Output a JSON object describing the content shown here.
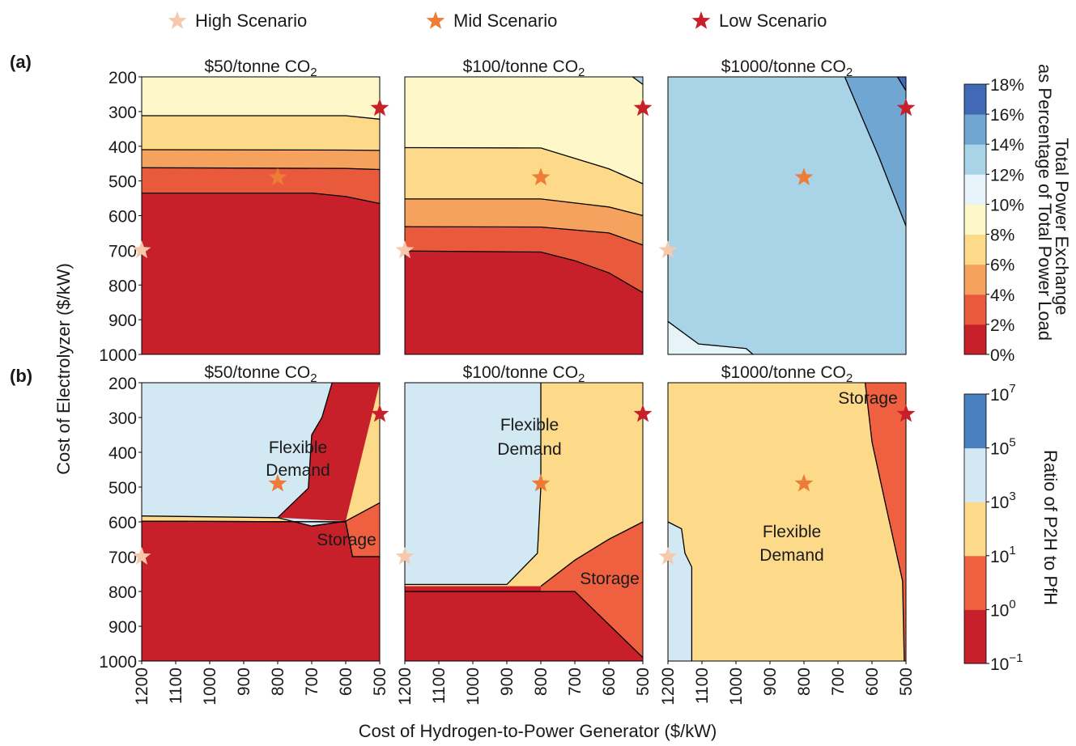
{
  "legend": [
    {
      "label": "High Scenario",
      "color": "#f6c9ad"
    },
    {
      "label": "Mid Scenario",
      "color": "#ee7b36"
    },
    {
      "label": "Low Scenario",
      "color": "#c8202b"
    }
  ],
  "row_labels": [
    "(a)",
    "(b)"
  ],
  "shared_ylabel": "Cost of Electrolyzer ($/kW)",
  "shared_xlabel": "Cost of Hydrogen-to-Power Generator ($/kW)",
  "x_ticks": [
    "1200",
    "1100",
    "1000",
    "900",
    "800",
    "700",
    "600",
    "500"
  ],
  "y_ticks": [
    "200",
    "300",
    "400",
    "500",
    "600",
    "700",
    "800",
    "900",
    "1000"
  ],
  "colorbar_a": {
    "title_line1": "Total Power Exchange",
    "title_line2": "as Percentage of Total Power Load",
    "ticks": [
      "0%",
      "2%",
      "4%",
      "6%",
      "8%",
      "10%",
      "12%",
      "14%",
      "16%",
      "18%"
    ],
    "colors": [
      "#c8202b",
      "#e95a3d",
      "#f5a25f",
      "#fdd98a",
      "#fef7c8",
      "#e6f3f8",
      "#a9d4e8",
      "#6fa7d2",
      "#4169b5"
    ]
  },
  "colorbar_b": {
    "title": "Ratio of P2H to PfH",
    "ticks": [
      {
        "base": "10",
        "exp": "−1"
      },
      {
        "base": "10",
        "exp": "0"
      },
      {
        "base": "10",
        "exp": "1"
      },
      {
        "base": "10",
        "exp": "3"
      },
      {
        "base": "10",
        "exp": "5"
      },
      {
        "base": "10",
        "exp": "7"
      }
    ],
    "colors": [
      "#c8202b",
      "#ee6040",
      "#fdd98a",
      "#d2e9f3",
      "#4b80c0"
    ]
  },
  "chart_data": {
    "type": "contour",
    "x_axis": {
      "label": "Cost of Hydrogen-to-Power Generator ($/kW)",
      "range": [
        1200,
        500
      ],
      "reversed": true
    },
    "y_axis": {
      "label": "Cost of Electrolyzer ($/kW)",
      "range": [
        200,
        1000
      ],
      "reversed": true
    },
    "scenario_points": {
      "High Scenario": {
        "x": 1200,
        "y": 700
      },
      "Mid Scenario": {
        "x": 800,
        "y": 490
      },
      "Low Scenario": {
        "x": 500,
        "y": 290
      }
    },
    "panels": [
      {
        "row": "a",
        "title": "$50/tonne CO",
        "title_sub": "2",
        "metric": "Total Power Exchange as Percentage of Total Power Load",
        "levels_pct": [
          0,
          2,
          4,
          6,
          8
        ],
        "boundaries": [
          {
            "between": "0-2%",
            "x": [
              1200,
              700,
              600,
              500
            ],
            "y": [
              535,
              535,
              545,
              565
            ]
          },
          {
            "between": "2-4%",
            "x": [
              1200,
              600,
              500
            ],
            "y": [
              462,
              464,
              467
            ]
          },
          {
            "between": "4-6%",
            "x": [
              1200,
              600,
              500
            ],
            "y": [
              410,
              411,
              412
            ]
          },
          {
            "between": "6-8%",
            "x": [
              1200,
              600,
              500
            ],
            "y": [
              312,
              312,
              322
            ]
          }
        ]
      },
      {
        "row": "a",
        "title": "$100/tonne CO",
        "title_sub": "2",
        "metric": "Total Power Exchange as Percentage of Total Power Load",
        "levels_pct": [
          0,
          2,
          4,
          6,
          8,
          10
        ],
        "boundaries": [
          {
            "between": "0-2%",
            "x": [
              1200,
              800,
              700,
              600,
              500
            ],
            "y": [
              702,
              705,
              730,
              765,
              822
            ]
          },
          {
            "between": "2-4%",
            "x": [
              1200,
              800,
              600,
              500
            ],
            "y": [
              632,
              633,
              650,
              685
            ]
          },
          {
            "between": "4-6%",
            "x": [
              1200,
              800,
              600,
              500
            ],
            "y": [
              552,
              552,
              575,
              600
            ]
          },
          {
            "between": "6-8%",
            "x": [
              1200,
              800,
              600,
              500
            ],
            "y": [
              404,
              405,
              465,
              508
            ]
          },
          {
            "between": "8-10%",
            "x": [
              530,
              500
            ],
            "y": [
              200,
              222
            ]
          }
        ]
      },
      {
        "row": "a",
        "title": "$1000/tonne CO",
        "title_sub": "2",
        "metric": "Total Power Exchange as Percentage of Total Power Load",
        "levels_pct": [
          10,
          12,
          14,
          16
        ],
        "boundaries": [
          {
            "between": "10-12%",
            "x": [
              1200,
              1110,
              970,
              950
            ],
            "y": [
              905,
              970,
              983,
              1000
            ]
          },
          {
            "between": "12-14%",
            "x": [
              680,
              580,
              500
            ],
            "y": [
              200,
              430,
              630
            ]
          },
          {
            "between": "14-16%",
            "x": [
              525,
              500
            ],
            "y": [
              200,
              240
            ]
          }
        ]
      },
      {
        "row": "b",
        "title": "$50/tonne CO",
        "title_sub": "2",
        "metric": "Ratio of P2H to PfH",
        "regions": [
          "Flexible Demand",
          "Storage"
        ],
        "boundaries": [
          {
            "between": "flexible-demand / hydrogen",
            "x": [
              1200,
              800,
              700,
              600
            ],
            "y": [
              583,
              588,
              612,
              598
            ]
          },
          {
            "between": "flexible-demand / power",
            "x": [
              800,
              710,
              700,
              670,
              640
            ],
            "y": [
              588,
              503,
              350,
              300,
              200
            ]
          },
          {
            "between": "storage",
            "x": [
              700,
              600,
              500
            ],
            "y": [
              612,
              598,
              545
            ]
          },
          {
            "between": "storage / 1e-1",
            "x": [
              1200,
              600,
              580,
              500
            ],
            "y": [
              598,
              600,
              700,
              700
            ]
          }
        ]
      },
      {
        "row": "b",
        "title": "$100/tonne CO",
        "title_sub": "2",
        "metric": "Ratio of P2H to PfH",
        "regions": [
          "Flexible Demand",
          "Storage"
        ],
        "boundaries": [
          {
            "between": "flexible-demand / power",
            "x": [
              1200,
              900,
              810,
              800,
              800
            ],
            "y": [
              780,
              780,
              690,
              500,
              200
            ]
          },
          {
            "between": "storage",
            "x": [
              800,
              700,
              600,
              500
            ],
            "y": [
              785,
              710,
              650,
              600
            ]
          },
          {
            "between": "storage / 1e-1",
            "x": [
              1200,
              700,
              500
            ],
            "y": [
              800,
              800,
              990
            ]
          }
        ]
      },
      {
        "row": "b",
        "title": "$1000/tonne CO",
        "title_sub": "2",
        "metric": "Ratio of P2H to PfH",
        "regions": [
          "Storage",
          "Flexible Demand"
        ],
        "boundaries": [
          {
            "between": "10^3 sliver",
            "x": [
              1200,
              1160,
              1150,
              1130,
              1130
            ],
            "y": [
              600,
              620,
              690,
              730,
              1000
            ]
          },
          {
            "between": "storage",
            "x": [
              620,
              600,
              560,
              510,
              505
            ],
            "y": [
              200,
              370,
              550,
              770,
              1000
            ]
          }
        ]
      }
    ],
    "annotations": [
      {
        "panel": 3,
        "text": "Flexible",
        "text2": "Demand"
      },
      {
        "panel": 3,
        "text": "Storage"
      },
      {
        "panel": 4,
        "text": "Flexible",
        "text2": "Demand"
      },
      {
        "panel": 4,
        "text": "Storage"
      },
      {
        "panel": 5,
        "text": "Storage"
      },
      {
        "panel": 5,
        "text": "Flexible",
        "text2": "Demand"
      }
    ]
  }
}
